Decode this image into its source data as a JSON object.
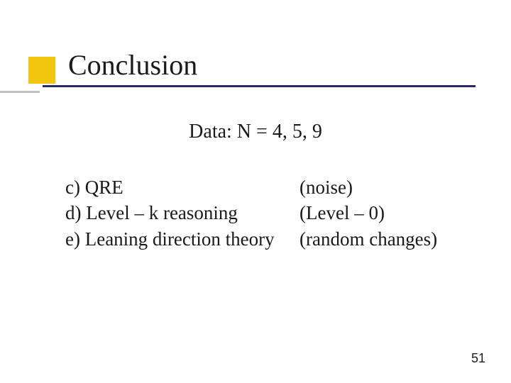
{
  "title": "Conclusion",
  "subtitle": "Data: N = 4, 5, 9",
  "rows": [
    {
      "left": "c) QRE",
      "right": "(noise)"
    },
    {
      "left": "d) Level – k reasoning",
      "right": "(Level – 0)"
    },
    {
      "left": "e) Leaning direction theory",
      "right": "(random changes)"
    }
  ],
  "page_number": "51",
  "colors": {
    "accent_yellow": "#f2c50f",
    "underline_blue": "#2a2a6a",
    "underline_gray": "#c0c0c0",
    "text": "#1a1a1a",
    "background": "#ffffff"
  },
  "fonts": {
    "title_size_pt": 40,
    "body_size_pt": 27,
    "subtitle_size_pt": 28,
    "pagenum_size_pt": 18
  }
}
